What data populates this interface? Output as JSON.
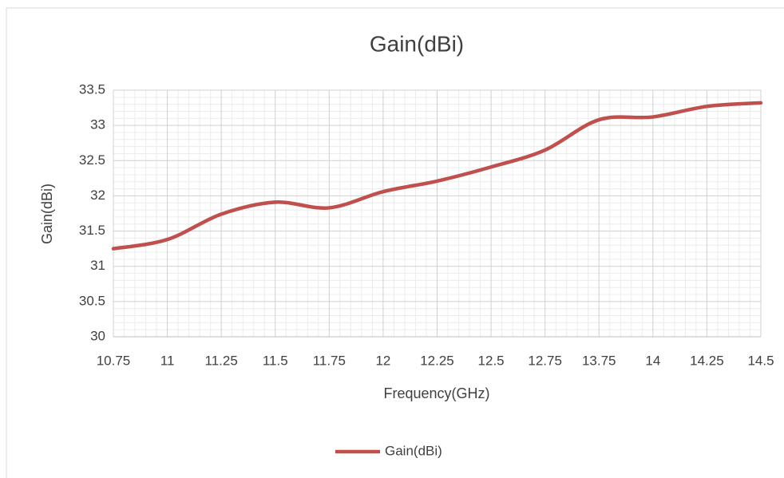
{
  "chart_data": {
    "type": "line",
    "title": "Gain(dBi)",
    "x_label": "Frequency(GHz)",
    "y_label": "Gain(dBi)",
    "categories": [
      "10.75",
      "11",
      "11.25",
      "11.5",
      "11.75",
      "12",
      "12.25",
      "12.5",
      "12.75",
      "13.75",
      "14",
      "14.25",
      "14.5"
    ],
    "series": [
      {
        "name": "Gain(dBi)",
        "color": "#c0504d",
        "values": [
          31.25,
          31.38,
          31.74,
          31.91,
          31.83,
          32.06,
          32.21,
          32.41,
          32.65,
          33.08,
          33.12,
          33.27,
          33.32
        ]
      }
    ],
    "ylim": [
      30,
      33.5
    ],
    "yticks": [
      30,
      30.5,
      31,
      31.5,
      32,
      32.5,
      33,
      33.5
    ],
    "grid": true,
    "minor_grid": true,
    "smooth": true,
    "legend": "bottom"
  }
}
